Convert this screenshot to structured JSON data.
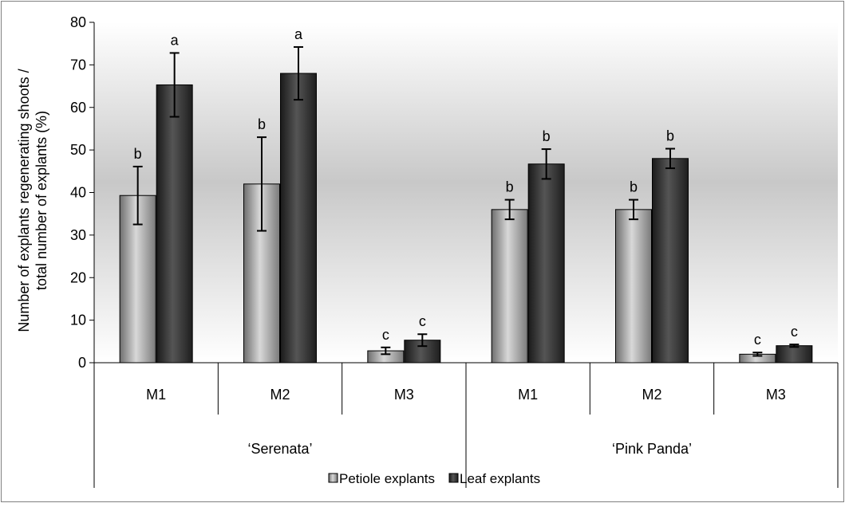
{
  "chart_data": {
    "type": "bar",
    "ylabel_lines": [
      "Number of explants regenerating shoots /",
      "total number of explants (%)"
    ],
    "ylim": [
      0,
      80
    ],
    "yticks": [
      0,
      10,
      20,
      30,
      40,
      50,
      60,
      70,
      80
    ],
    "groups": [
      {
        "label": "‘Serenata’",
        "categories": [
          "M1",
          "M2",
          "M3"
        ]
      },
      {
        "label": "‘Pink Panda’",
        "categories": [
          "M1",
          "M2",
          "M3"
        ]
      }
    ],
    "series": [
      {
        "name": "Petiole explants",
        "color": "#a6a6a6",
        "values": [
          39.3,
          42.0,
          2.8,
          36.0,
          36.0,
          2.0
        ],
        "errors": [
          6.8,
          11.0,
          0.8,
          2.3,
          2.3,
          0.4
        ],
        "letters": [
          "b",
          "b",
          "c",
          "b",
          "b",
          "c"
        ]
      },
      {
        "name": "Leaf explants",
        "color": "#404040",
        "values": [
          65.3,
          68.0,
          5.3,
          46.7,
          48.0,
          4.0
        ],
        "errors": [
          7.5,
          6.2,
          1.4,
          3.5,
          2.3,
          0.3
        ],
        "letters": [
          "a",
          "a",
          "c",
          "b",
          "b",
          "c"
        ]
      }
    ],
    "legend_position": "bottom-center",
    "grid": false
  }
}
